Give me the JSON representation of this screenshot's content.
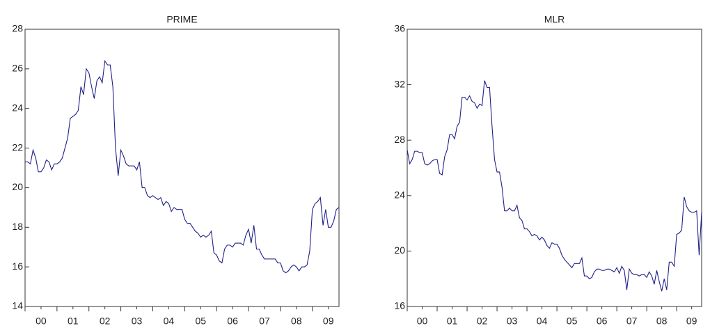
{
  "chart_data": [
    {
      "type": "line",
      "title": "PRIME",
      "color": "#1f1f8a",
      "categories": [
        "00",
        null,
        null,
        null,
        null,
        null,
        null,
        null,
        null,
        null,
        null,
        null,
        "01",
        null,
        null,
        null,
        null,
        null,
        null,
        null,
        null,
        null,
        null,
        null,
        "02",
        null,
        null,
        null,
        null,
        null,
        null,
        null,
        null,
        null,
        null,
        null,
        "03",
        null,
        null,
        null,
        null,
        null,
        null,
        null,
        null,
        null,
        null,
        null,
        "04",
        null,
        null,
        null,
        null,
        null,
        null,
        null,
        null,
        null,
        null,
        null,
        "05",
        null,
        null,
        null,
        null,
        null,
        null,
        null,
        null,
        null,
        null,
        null,
        "06",
        null,
        null,
        null,
        null,
        null,
        null,
        null,
        null,
        null,
        null,
        null,
        "07",
        null,
        null,
        null,
        null,
        null,
        null,
        null,
        null,
        null,
        null,
        null,
        "08",
        null,
        null,
        null,
        null,
        null,
        null,
        null,
        null,
        null,
        null,
        null,
        "09",
        null,
        null,
        null,
        null,
        null,
        null,
        null,
        null,
        null,
        null
      ],
      "values": [
        21.3,
        21.3,
        21.2,
        21.9,
        21.5,
        20.8,
        20.8,
        21.0,
        21.4,
        21.3,
        20.9,
        21.2,
        21.2,
        21.3,
        21.5,
        22.0,
        22.5,
        23.5,
        23.6,
        23.7,
        23.9,
        25.1,
        24.7,
        26.0,
        25.8,
        25.1,
        24.5,
        25.4,
        25.6,
        25.3,
        26.4,
        26.2,
        26.2,
        25.1,
        22.0,
        20.6,
        21.9,
        21.6,
        21.2,
        21.1,
        21.1,
        21.1,
        20.9,
        21.3,
        20.0,
        20.0,
        19.6,
        19.5,
        19.6,
        19.5,
        19.4,
        19.5,
        19.1,
        19.3,
        19.2,
        18.8,
        19.0,
        18.9,
        18.9,
        18.9,
        18.4,
        18.2,
        18.2,
        18.0,
        17.8,
        17.7,
        17.5,
        17.6,
        17.5,
        17.6,
        17.8,
        16.7,
        16.6,
        16.3,
        16.2,
        16.9,
        17.1,
        17.1,
        17.0,
        17.2,
        17.2,
        17.2,
        17.1,
        17.6,
        17.9,
        17.2,
        18.1,
        16.9,
        16.9,
        16.6,
        16.4,
        16.4,
        16.4,
        16.4,
        16.4,
        16.2,
        16.2,
        15.8,
        15.7,
        15.8,
        16.0,
        16.1,
        16.0,
        15.8,
        16.0,
        16.0,
        16.1,
        16.8,
        18.9,
        19.2,
        19.3,
        19.5,
        18.1,
        18.9,
        18.0,
        18.0,
        18.3,
        18.9,
        19.0
      ],
      "ylim": [
        14,
        28
      ],
      "yticks": [
        14,
        16,
        18,
        20,
        22,
        24,
        26,
        28
      ]
    },
    {
      "type": "line",
      "title": "MLR",
      "color": "#1f1f8a",
      "categories": [
        "00",
        null,
        null,
        null,
        null,
        null,
        null,
        null,
        null,
        null,
        null,
        null,
        "01",
        null,
        null,
        null,
        null,
        null,
        null,
        null,
        null,
        null,
        null,
        null,
        "02",
        null,
        null,
        null,
        null,
        null,
        null,
        null,
        null,
        null,
        null,
        null,
        "03",
        null,
        null,
        null,
        null,
        null,
        null,
        null,
        null,
        null,
        null,
        null,
        "04",
        null,
        null,
        null,
        null,
        null,
        null,
        null,
        null,
        null,
        null,
        null,
        "05",
        null,
        null,
        null,
        null,
        null,
        null,
        null,
        null,
        null,
        null,
        null,
        "06",
        null,
        null,
        null,
        null,
        null,
        null,
        null,
        null,
        null,
        null,
        null,
        "07",
        null,
        null,
        null,
        null,
        null,
        null,
        null,
        null,
        null,
        null,
        null,
        "08",
        null,
        null,
        null,
        null,
        null,
        null,
        null,
        null,
        null,
        null,
        null,
        "09",
        null,
        null,
        null,
        null,
        null,
        null,
        null,
        null,
        null,
        null
      ],
      "values": [
        27.3,
        26.3,
        26.6,
        27.2,
        27.2,
        27.1,
        27.1,
        26.3,
        26.2,
        26.3,
        26.5,
        26.6,
        26.6,
        25.6,
        25.5,
        26.8,
        27.3,
        28.4,
        28.4,
        28.1,
        29.0,
        29.3,
        31.1,
        31.1,
        30.9,
        31.2,
        30.8,
        30.7,
        30.3,
        30.6,
        30.5,
        32.3,
        31.8,
        31.8,
        29.0,
        26.6,
        25.7,
        25.7,
        24.6,
        22.9,
        22.9,
        23.1,
        22.9,
        22.9,
        23.3,
        22.4,
        22.2,
        21.6,
        21.6,
        21.4,
        21.1,
        21.2,
        21.1,
        20.8,
        21.0,
        20.8,
        20.4,
        20.2,
        20.6,
        20.5,
        20.5,
        20.2,
        19.7,
        19.4,
        19.2,
        19.0,
        18.8,
        19.1,
        19.1,
        19.1,
        19.5,
        18.2,
        18.2,
        18.0,
        18.1,
        18.5,
        18.7,
        18.7,
        18.6,
        18.6,
        18.7,
        18.7,
        18.6,
        18.5,
        18.8,
        18.4,
        18.9,
        18.6,
        17.2,
        18.7,
        18.4,
        18.3,
        18.3,
        18.2,
        18.3,
        18.3,
        18.1,
        18.5,
        18.2,
        17.6,
        18.6,
        17.8,
        17.1,
        18.0,
        17.2,
        19.2,
        19.2,
        18.9,
        21.2,
        21.3,
        21.5,
        23.9,
        23.2,
        22.9,
        22.8,
        22.8,
        22.9,
        19.7,
        22.8
      ],
      "ylim": [
        16,
        36
      ],
      "yticks": [
        16,
        20,
        24,
        28,
        32,
        36
      ]
    }
  ]
}
